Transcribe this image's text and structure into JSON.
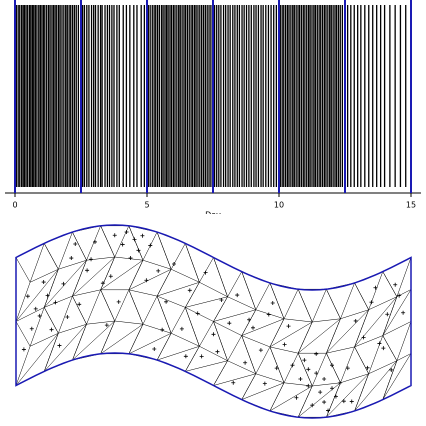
{
  "chart_data": [
    {
      "type": "rug",
      "xlabel": "Day",
      "xlim": [
        0,
        15
      ],
      "xticks": [
        0,
        5,
        10,
        15
      ],
      "color": "#000000",
      "vlines": [
        0,
        2.5,
        5,
        7.5,
        10,
        12.5,
        15
      ],
      "vline_color": "#1a1ab4",
      "values": [
        0.05,
        0.12,
        0.18,
        0.25,
        0.31,
        0.36,
        0.42,
        0.48,
        0.55,
        0.6,
        0.66,
        0.71,
        0.77,
        0.83,
        0.9,
        0.96,
        1.02,
        1.08,
        1.13,
        1.2,
        1.27,
        1.33,
        1.4,
        1.46,
        1.52,
        1.58,
        1.65,
        1.71,
        1.78,
        1.85,
        1.92,
        1.98,
        2.05,
        2.11,
        2.18,
        2.25,
        2.32,
        2.4,
        2.56,
        2.63,
        2.72,
        2.8,
        2.9,
        2.98,
        3.05,
        3.15,
        3.24,
        3.3,
        3.41,
        3.5,
        3.58,
        3.67,
        3.75,
        3.86,
        3.95,
        4.1,
        4.22,
        4.35,
        4.5,
        4.62,
        4.78,
        4.9,
        5.05,
        5.12,
        5.2,
        5.27,
        5.33,
        5.4,
        5.47,
        5.55,
        5.61,
        5.68,
        5.74,
        5.8,
        5.87,
        5.93,
        6.0,
        6.06,
        6.13,
        6.2,
        6.26,
        6.33,
        6.4,
        6.46,
        6.53,
        6.6,
        6.67,
        6.73,
        6.8,
        6.86,
        6.93,
        7.0,
        7.07,
        7.14,
        7.21,
        7.28,
        7.35,
        7.42,
        7.56,
        7.64,
        7.72,
        7.8,
        7.9,
        7.98,
        8.07,
        8.15,
        8.25,
        8.33,
        8.42,
        8.5,
        8.6,
        8.68,
        8.77,
        8.86,
        8.95,
        9.05,
        9.13,
        9.22,
        9.32,
        9.4,
        9.5,
        9.6,
        9.7,
        9.8,
        9.9,
        10.05,
        10.12,
        10.18,
        10.25,
        10.32,
        10.38,
        10.45,
        10.52,
        10.58,
        10.65,
        10.72,
        10.78,
        10.85,
        10.92,
        10.98,
        11.05,
        11.12,
        11.18,
        11.25,
        11.32,
        11.38,
        11.45,
        11.52,
        11.58,
        11.65,
        11.72,
        11.78,
        11.85,
        11.92,
        11.98,
        12.05,
        12.12,
        12.18,
        12.25,
        12.32,
        12.4,
        12.6,
        12.72,
        12.85,
        12.98,
        13.1,
        13.25,
        13.4,
        13.55,
        13.7,
        13.85,
        14.0,
        14.2,
        14.4,
        14.6,
        14.8
      ]
    },
    {
      "type": "scatter",
      "xlim": [
        0,
        1
      ],
      "ylim": [
        0,
        1
      ],
      "color": "#000000",
      "outline_color": "#1a1ab4",
      "x": [
        0.03,
        0.05,
        0.06,
        0.08,
        0.04,
        0.07,
        0.1,
        0.12,
        0.09,
        0.14,
        0.16,
        0.11,
        0.18,
        0.2,
        0.22,
        0.25,
        0.27,
        0.28,
        0.3,
        0.31,
        0.32,
        0.29,
        0.34,
        0.26,
        0.33,
        0.36,
        0.38,
        0.4,
        0.42,
        0.37,
        0.44,
        0.46,
        0.48,
        0.5,
        0.52,
        0.47,
        0.54,
        0.56,
        0.58,
        0.6,
        0.55,
        0.62,
        0.64,
        0.66,
        0.63,
        0.68,
        0.7,
        0.72,
        0.71,
        0.73,
        0.74,
        0.75,
        0.76,
        0.77,
        0.78,
        0.79,
        0.8,
        0.81,
        0.82,
        0.83,
        0.84,
        0.76,
        0.78,
        0.8,
        0.74,
        0.86,
        0.88,
        0.9,
        0.92,
        0.94,
        0.96,
        0.98,
        0.89,
        0.93,
        0.97,
        0.95,
        0.91,
        0.85,
        0.69,
        0.65,
        0.59,
        0.51,
        0.43,
        0.35,
        0.23,
        0.19,
        0.13,
        0.02,
        0.15,
        0.24
      ],
      "y": [
        0.35,
        0.48,
        0.55,
        0.42,
        0.62,
        0.3,
        0.5,
        0.38,
        0.7,
        0.2,
        0.58,
        0.85,
        0.33,
        0.12,
        0.45,
        0.08,
        0.15,
        0.05,
        0.1,
        0.18,
        0.06,
        0.25,
        0.12,
        0.6,
        0.4,
        0.3,
        0.52,
        0.2,
        0.68,
        0.75,
        0.35,
        0.5,
        0.15,
        0.6,
        0.3,
        0.82,
        0.45,
        0.2,
        0.7,
        0.4,
        0.9,
        0.55,
        0.25,
        0.65,
        0.8,
        0.45,
        0.6,
        0.7,
        0.85,
        0.55,
        0.75,
        0.9,
        0.65,
        0.8,
        0.7,
        0.95,
        0.6,
        0.85,
        0.75,
        0.9,
        0.65,
        0.5,
        0.88,
        0.78,
        0.62,
        0.3,
        0.45,
        0.2,
        0.55,
        0.35,
        0.15,
        0.4,
        0.7,
        0.6,
        0.25,
        0.8,
        0.1,
        0.92,
        0.3,
        0.15,
        0.35,
        0.72,
        0.88,
        0.92,
        0.78,
        0.25,
        0.65,
        0.75,
        0.1,
        0.4
      ]
    }
  ]
}
